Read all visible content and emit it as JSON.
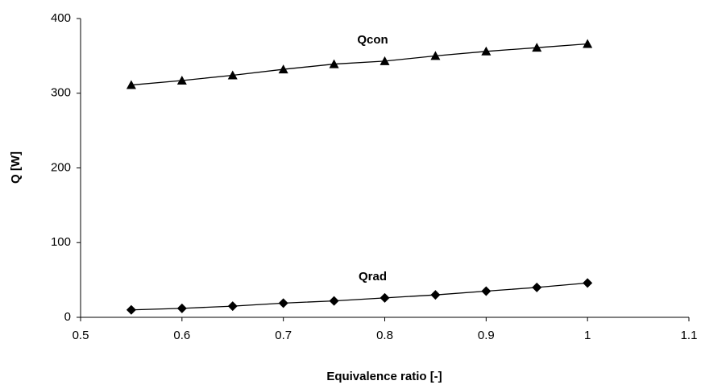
{
  "chart_data": {
    "type": "line",
    "x_label": "Equivalence ratio [-]",
    "y_label": "Q [W]",
    "x": [
      0.55,
      0.6,
      0.65,
      0.7,
      0.75,
      0.8,
      0.85,
      0.9,
      0.95,
      1
    ],
    "series": [
      {
        "name": "Qcon",
        "color": "#000000",
        "marker": "triangle",
        "values": [
          311,
          317,
          324,
          332,
          339,
          343,
          350,
          356,
          361,
          366
        ]
      },
      {
        "name": "Qrad",
        "color": "#000000",
        "marker": "diamond",
        "values": [
          10,
          12,
          15,
          19,
          22,
          26,
          30,
          35,
          40,
          46
        ]
      }
    ],
    "xlim": [
      0.5,
      1.1
    ],
    "xticks": [
      0.5,
      0.6,
      0.7,
      0.8,
      0.9,
      1,
      1.1
    ],
    "ylim": [
      0,
      400
    ],
    "yticks": [
      0,
      100,
      200,
      300,
      400
    ],
    "grid": false
  }
}
